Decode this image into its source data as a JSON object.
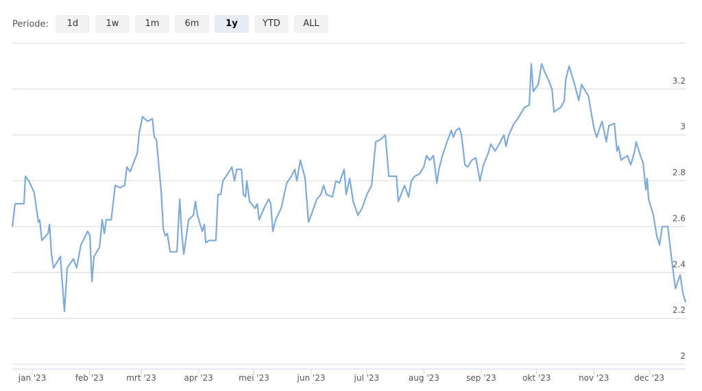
{
  "range_selector": {
    "label": "Periode:",
    "buttons": [
      "1d",
      "1w",
      "1m",
      "6m",
      "1y",
      "YTD",
      "ALL"
    ],
    "selected": 4
  },
  "chart_data": {
    "type": "line",
    "xlim": [
      -10.8,
      353.6
    ],
    "xticks": [
      {
        "value": 0,
        "label": "jan '23"
      },
      {
        "value": 31,
        "label": "feb '23"
      },
      {
        "value": 59,
        "label": "mrt '23"
      },
      {
        "value": 90,
        "label": "apr '23"
      },
      {
        "value": 120,
        "label": "mei '23"
      },
      {
        "value": 151,
        "label": "jun '23"
      },
      {
        "value": 181,
        "label": "jul '23"
      },
      {
        "value": 212,
        "label": "aug '23"
      },
      {
        "value": 243,
        "label": "sep '23"
      },
      {
        "value": 273,
        "label": "okt '23"
      },
      {
        "value": 304,
        "label": "nov '23"
      },
      {
        "value": 334,
        "label": "dec '23"
      }
    ],
    "ylim": [
      2,
      3.4
    ],
    "yticks": [
      2,
      2.2,
      2.4,
      2.6,
      2.8,
      3,
      3.2
    ],
    "grid": true,
    "color": "#7eaad8",
    "x": [
      -10.8,
      -9.3,
      -4.5,
      -3.7,
      -1.9,
      1,
      3.3,
      4,
      5.2,
      8.5,
      9.3,
      10.4,
      11.5,
      15.2,
      17.4,
      18.9,
      22.3,
      24,
      26.3,
      30,
      31.2,
      32.3,
      33.4,
      36.4,
      37.8,
      39,
      40,
      42.7,
      44.9,
      47.5,
      50,
      51.2,
      53,
      56.8,
      57.9,
      59.7,
      62.3,
      65,
      66,
      67.2,
      69.8,
      70.9,
      72,
      73.1,
      74.6,
      78.3,
      79.8,
      80.9,
      82,
      84.6,
      87.2,
      88.3,
      89.4,
      92,
      93.1,
      93.9,
      95.7,
      99.4,
      100.5,
      102,
      103.2,
      105.8,
      108,
      109.5,
      110.6,
      113.2,
      114.3,
      115.4,
      116.1,
      117.6,
      120.6,
      121.7,
      122.8,
      125.4,
      128,
      129.1,
      130.2,
      131.7,
      134.7,
      137.7,
      140.3,
      142.1,
      143.2,
      145.1,
      147.7,
      149.5,
      151.4,
      154,
      156.2,
      157.7,
      159.2,
      162.5,
      164.4,
      166.2,
      168.8,
      169.9,
      171.8,
      173.7,
      176.3,
      178.5,
      181.1,
      183.7,
      185.9,
      188.5,
      191.1,
      193,
      197.1,
      198.1,
      199.6,
      201.5,
      203.7,
      205.2,
      207.1,
      209.6,
      211.9,
      213.4,
      215.2,
      217.1,
      219,
      220.1,
      222,
      224.5,
      226.8,
      227.9,
      229.4,
      231.2,
      232.3,
      234.2,
      235.7,
      237.9,
      240.1,
      242.3,
      244.2,
      246.8,
      248.2,
      250.5,
      252.7,
      255.3,
      256.4,
      257.9,
      260.8,
      262.7,
      266.4,
      269,
      270.1,
      271.2,
      273.8,
      275.7,
      277.6,
      279.4,
      281.3,
      282.4,
      283.9,
      286.1,
      288,
      288.7,
      290.6,
      293.6,
      295.8,
      297.3,
      298.8,
      301,
      302.5,
      304,
      305.5,
      308.4,
      310.7,
      312.1,
      315.1,
      316.5,
      317.3,
      318.7,
      322.1,
      323.9,
      325.8,
      326.9,
      329.5,
      330.6,
      332.1,
      332.8,
      333.6,
      336.2,
      338,
      339.5,
      341,
      344,
      346.2,
      348.1,
      350.7,
      352.2,
      353.6
    ],
    "values": [
      2.6,
      2.7,
      2.7,
      2.82,
      2.8,
      2.75,
      2.62,
      2.63,
      2.54,
      2.57,
      2.61,
      2.48,
      2.42,
      2.47,
      2.23,
      2.42,
      2.46,
      2.42,
      2.52,
      2.58,
      2.56,
      2.36,
      2.47,
      2.51,
      2.63,
      2.57,
      2.63,
      2.63,
      2.78,
      2.77,
      2.78,
      2.86,
      2.84,
      2.92,
      3.01,
      3.08,
      3.06,
      3.07,
      2.99,
      2.98,
      2.75,
      2.59,
      2.56,
      2.57,
      2.49,
      2.49,
      2.72,
      2.57,
      2.48,
      2.63,
      2.65,
      2.71,
      2.65,
      2.58,
      2.61,
      2.53,
      2.54,
      2.54,
      2.74,
      2.74,
      2.8,
      2.83,
      2.86,
      2.8,
      2.85,
      2.85,
      2.74,
      2.73,
      2.8,
      2.71,
      2.68,
      2.7,
      2.63,
      2.68,
      2.72,
      2.7,
      2.58,
      2.63,
      2.68,
      2.79,
      2.82,
      2.85,
      2.8,
      2.89,
      2.81,
      2.62,
      2.66,
      2.72,
      2.74,
      2.78,
      2.74,
      2.73,
      2.8,
      2.79,
      2.85,
      2.74,
      2.81,
      2.71,
      2.65,
      2.68,
      2.74,
      2.78,
      2.97,
      2.98,
      3,
      2.82,
      2.82,
      2.71,
      2.74,
      2.78,
      2.73,
      2.8,
      2.82,
      2.83,
      2.86,
      2.91,
      2.89,
      2.91,
      2.79,
      2.85,
      2.91,
      2.97,
      3.02,
      2.99,
      3.02,
      3.03,
      3,
      2.87,
      2.86,
      2.89,
      2.9,
      2.8,
      2.87,
      2.92,
      2.96,
      2.93,
      2.96,
      3,
      2.95,
      3,
      3.05,
      3.07,
      3.12,
      3.13,
      3.31,
      3.19,
      3.22,
      3.31,
      3.27,
      3.24,
      3.2,
      3.1,
      3.11,
      3.12,
      3.15,
      3.24,
      3.3,
      3.22,
      3.15,
      3.22,
      3.2,
      3.17,
      3.1,
      3.03,
      2.99,
      3.06,
      2.97,
      3.04,
      3.05,
      2.93,
      2.95,
      2.89,
      2.91,
      2.87,
      2.92,
      2.97,
      2.9,
      2.88,
      2.76,
      2.81,
      2.72,
      2.65,
      2.56,
      2.52,
      2.6,
      2.6,
      2.45,
      2.33,
      2.39,
      2.31,
      2.27
    ]
  }
}
